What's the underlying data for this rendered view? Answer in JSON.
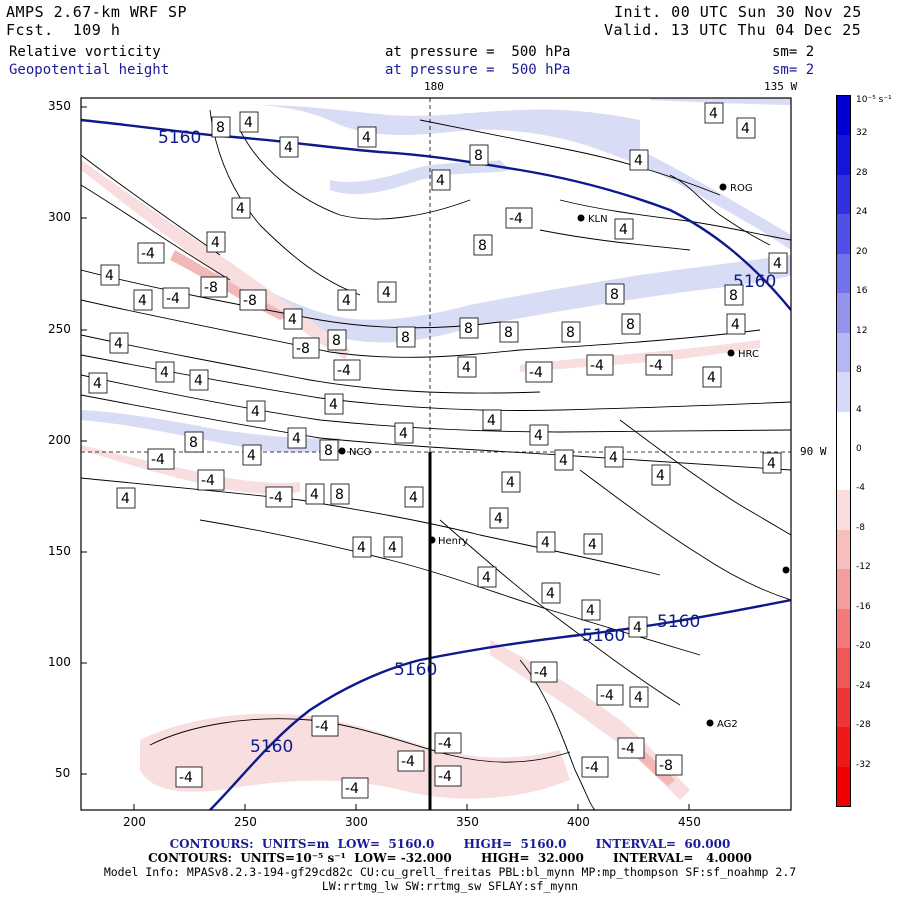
{
  "header": {
    "model": "AMPS 2.67-km WRF SP",
    "forecast": "Fcst.  109 h",
    "init": "Init. 00 UTC Sun 30 Nov 25",
    "valid": "Valid. 13 UTC Thu 04 Dec 25",
    "field1_name": "Relative vorticity",
    "field1_level": "at pressure =  500 hPa",
    "field1_smooth": "sm= 2",
    "field2_name": "Geopotential height",
    "field2_level": "at pressure =  500 hPa",
    "field2_smooth": "sm= 2"
  },
  "map": {
    "meridian_label_top_left": "180",
    "meridian_label_top_right": "135 W",
    "meridian_label_right": "90 W",
    "x_ticks": [
      "200",
      "250",
      "300",
      "350",
      "400",
      "450"
    ],
    "y_ticks": [
      "350",
      "300",
      "250",
      "200",
      "150",
      "100",
      "50"
    ],
    "stations": [
      {
        "name": "NCO"
      },
      {
        "name": "Henry"
      },
      {
        "name": "KLN"
      },
      {
        "name": "ROG"
      },
      {
        "name": "HRC"
      },
      {
        "name": "AG2"
      }
    ],
    "height_label": "5160",
    "vort_labels": [
      "4",
      "8",
      "-4",
      "-8"
    ],
    "colors": {
      "height_contour": "#0d1a8c",
      "positive_fill": "#d8dcf5",
      "negative_fill": "#f8dede",
      "negative_strong": "#f1b8b8",
      "contour": "#000000"
    }
  },
  "colorbar": {
    "unit_label": "10⁻⁵ s⁻¹",
    "labels": [
      "32",
      "28",
      "24",
      "20",
      "16",
      "12",
      "8",
      "4",
      "0",
      "-4",
      "-8",
      "-12",
      "-16",
      "-20",
      "-24",
      "-28",
      "-32"
    ],
    "colors": [
      "#0000d0",
      "#1616d8",
      "#3030e0",
      "#5050e6",
      "#7272ea",
      "#9494ee",
      "#b4b8f2",
      "#d6d9f7",
      "#ffffff",
      "#ffffff",
      "#fbdddd",
      "#f8bebe",
      "#f59c9c",
      "#f27a7a",
      "#f05757",
      "#ee3434",
      "#ee1818",
      "#f00000"
    ]
  },
  "footer": {
    "contours1": "CONTOURS:  UNITS=m  LOW=  5160.0       HIGH=  5160.0       INTERVAL=  60.000",
    "contours2": "CONTOURS:  UNITS=10⁻⁵ s⁻¹  LOW= -32.000       HIGH=  32.000       INTERVAL=   4.0000",
    "model_info": "Model Info: MPASv8.2.3-194-gf29cd82c CU:cu_grell_freitas PBL:bl_mynn MP:mp_thompson SF:sf_noahmp 2.7",
    "model_info2": "LW:rrtmg_lw SW:rrtmg_sw SFLAY:sf_mynn"
  }
}
